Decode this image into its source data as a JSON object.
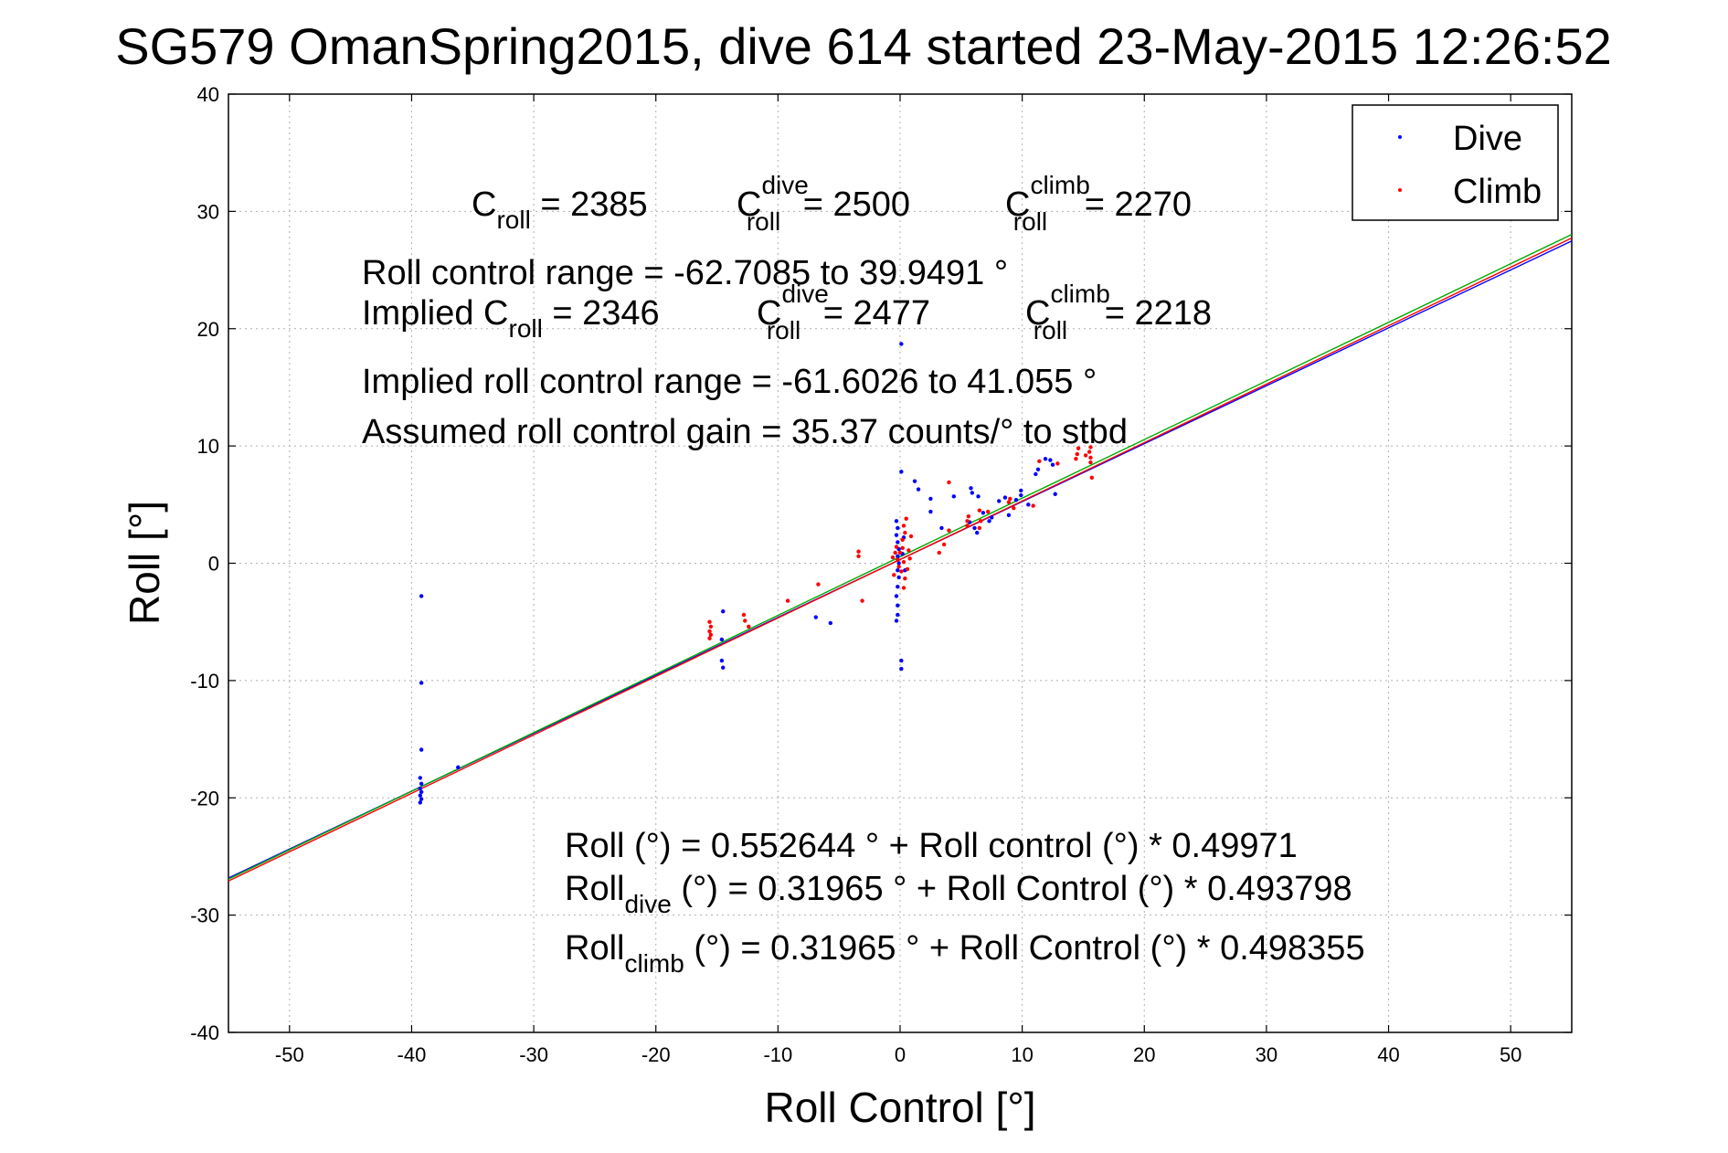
{
  "chart_data": {
    "type": "scatter",
    "title": "SG579 OmanSpring2015, dive 614 started 23-May-2015 12:26:52",
    "xlabel": "Roll Control [°]",
    "ylabel": "Roll [°]",
    "xlim": [
      -55,
      55
    ],
    "ylim": [
      -40,
      40
    ],
    "xticks": [
      -50,
      -40,
      -30,
      -20,
      -10,
      0,
      10,
      20,
      30,
      40,
      50
    ],
    "yticks": [
      -40,
      -30,
      -20,
      -10,
      0,
      10,
      20,
      30,
      40
    ],
    "grid": true,
    "legend": {
      "position": "top-right",
      "entries": [
        {
          "label": "Dive",
          "color": "#0000ff"
        },
        {
          "label": "Climb",
          "color": "#ff0000"
        }
      ]
    },
    "fit_lines": [
      {
        "color": "#0000ff",
        "intercept": 0.31965,
        "slope": 0.493798
      },
      {
        "color": "#ff0000",
        "intercept": 0.31965,
        "slope": 0.498355
      },
      {
        "color": "#00aa00",
        "intercept": 0.552644,
        "slope": 0.49971
      }
    ],
    "series": [
      {
        "name": "Dive",
        "color": "#0000ff",
        "points": [
          [
            -39.2,
            -2.8
          ],
          [
            -39.2,
            -10.2
          ],
          [
            -39.2,
            -15.9
          ],
          [
            -39.3,
            -18.3
          ],
          [
            -39.2,
            -18.8
          ],
          [
            -39.3,
            -19.2
          ],
          [
            -39.2,
            -19.5
          ],
          [
            -39.3,
            -19.8
          ],
          [
            -39.2,
            -20.1
          ],
          [
            -39.3,
            -20.4
          ],
          [
            -36.2,
            -17.4
          ],
          [
            -14.5,
            -4.1
          ],
          [
            -14.6,
            -6.5
          ],
          [
            -14.6,
            -8.3
          ],
          [
            -14.5,
            -8.9
          ],
          [
            -6.9,
            -4.6
          ],
          [
            -5.7,
            -5.1
          ],
          [
            -0.3,
            3.6
          ],
          [
            -0.2,
            3.0
          ],
          [
            -0.3,
            2.4
          ],
          [
            -0.2,
            1.8
          ],
          [
            -0.1,
            1.2
          ],
          [
            -0.2,
            0.6
          ],
          [
            -0.1,
            0.0
          ],
          [
            -0.2,
            -0.6
          ],
          [
            -0.1,
            -1.2
          ],
          [
            -0.2,
            -2.0
          ],
          [
            -0.3,
            -2.8
          ],
          [
            -0.2,
            -3.6
          ],
          [
            -0.2,
            -4.4
          ],
          [
            -0.3,
            -4.9
          ],
          [
            0.1,
            7.8
          ],
          [
            0.1,
            18.7
          ],
          [
            0.1,
            -8.3
          ],
          [
            0.1,
            -9.0
          ],
          [
            0.3,
            2.2
          ],
          [
            0.2,
            0.8
          ],
          [
            0.4,
            -0.6
          ],
          [
            1.2,
            7.0
          ],
          [
            1.5,
            6.3
          ],
          [
            2.5,
            5.5
          ],
          [
            2.5,
            4.4
          ],
          [
            3.4,
            3.0
          ],
          [
            4.4,
            5.7
          ],
          [
            5.8,
            6.4
          ],
          [
            5.9,
            6.0
          ],
          [
            6.4,
            5.7
          ],
          [
            5.7,
            3.5
          ],
          [
            6.1,
            3.0
          ],
          [
            6.3,
            2.6
          ],
          [
            6.8,
            4.3
          ],
          [
            7.3,
            3.6
          ],
          [
            7.5,
            3.9
          ],
          [
            8.1,
            5.3
          ],
          [
            8.6,
            5.6
          ],
          [
            8.9,
            4.1
          ],
          [
            9.5,
            5.4
          ],
          [
            9.9,
            6.2
          ],
          [
            9.9,
            5.8
          ],
          [
            10.5,
            5.0
          ],
          [
            11.1,
            7.6
          ],
          [
            11.3,
            8.0
          ],
          [
            12.3,
            8.8
          ],
          [
            12.5,
            8.4
          ],
          [
            12.7,
            5.9
          ],
          [
            11.9,
            8.9
          ]
        ]
      },
      {
        "name": "Climb",
        "color": "#ff0000",
        "points": [
          [
            -15.6,
            -5.0
          ],
          [
            -15.5,
            -5.4
          ],
          [
            -15.6,
            -5.8
          ],
          [
            -15.5,
            -6.1
          ],
          [
            -15.6,
            -6.4
          ],
          [
            -12.8,
            -4.4
          ],
          [
            -12.7,
            -4.9
          ],
          [
            -12.4,
            -5.4
          ],
          [
            -9.2,
            -3.2
          ],
          [
            -6.7,
            -1.8
          ],
          [
            -3.4,
            0.6
          ],
          [
            -3.4,
            1.0
          ],
          [
            -3.1,
            -3.2
          ],
          [
            -0.4,
            0.9
          ],
          [
            -0.3,
            1.4
          ],
          [
            -0.2,
            0.3
          ],
          [
            -0.1,
            -0.3
          ],
          [
            0.0,
            0.9
          ],
          [
            0.1,
            -0.7
          ],
          [
            0.2,
            2.0
          ],
          [
            0.2,
            1.3
          ],
          [
            0.3,
            0.1
          ],
          [
            0.3,
            3.2
          ],
          [
            0.4,
            -1.3
          ],
          [
            0.4,
            2.6
          ],
          [
            0.3,
            -2.1
          ],
          [
            0.5,
            3.8
          ],
          [
            0.6,
            -0.5
          ],
          [
            0.7,
            1.1
          ],
          [
            0.8,
            0.4
          ],
          [
            0.9,
            2.3
          ],
          [
            -0.5,
            -1.0
          ],
          [
            -0.6,
            0.5
          ],
          [
            3.2,
            0.9
          ],
          [
            3.6,
            1.6
          ],
          [
            4.0,
            2.8
          ],
          [
            4.0,
            6.9
          ],
          [
            5.5,
            3.6
          ],
          [
            5.5,
            3.2
          ],
          [
            5.6,
            4.0
          ],
          [
            6.5,
            4.5
          ],
          [
            6.6,
            3.6
          ],
          [
            6.5,
            3.0
          ],
          [
            7.2,
            4.4
          ],
          [
            8.9,
            5.2
          ],
          [
            9.0,
            5.5
          ],
          [
            9.3,
            4.7
          ],
          [
            10.9,
            4.9
          ],
          [
            11.4,
            8.7
          ],
          [
            12.9,
            8.5
          ],
          [
            14.5,
            9.3
          ],
          [
            14.6,
            9.8
          ],
          [
            14.4,
            8.9
          ],
          [
            15.2,
            9.2
          ],
          [
            15.5,
            9.5
          ],
          [
            15.6,
            9.0
          ],
          [
            15.6,
            8.6
          ],
          [
            15.6,
            9.9
          ],
          [
            15.7,
            7.3
          ]
        ]
      }
    ],
    "annotations": {
      "c_roll": {
        "base": "C",
        "sub": "roll",
        "value": " = 2385"
      },
      "c_roll_dive": {
        "base": "C",
        "sup": "dive",
        "sub": "roll",
        "value": " = 2500"
      },
      "c_roll_climb": {
        "base": "C",
        "sup": "climb",
        "sub": "roll",
        "value": " = 2270"
      },
      "roll_control_range": "Roll control range = -62.7085 to 39.9491 °",
      "implied_c_roll": {
        "prefix": "Implied C",
        "sub": "roll",
        "value": " = 2346"
      },
      "implied_c_roll_dive": {
        "base": "C",
        "sup": "dive",
        "sub": "roll",
        "value": " = 2477"
      },
      "implied_c_roll_climb": {
        "base": "C",
        "sup": "climb",
        "sub": "roll",
        "value": " = 2218"
      },
      "implied_range": "Implied roll control range = -61.6026 to 41.055 °",
      "assumed_gain": "Assumed roll control gain = 35.37 counts/° to stbd",
      "fit_all": "Roll (°) = 0.552644 ° + Roll control (°) * 0.49971",
      "fit_dive": {
        "base": "Roll",
        "sub": "dive",
        "text": " (°) = 0.31965 ° + Roll Control (°) * 0.493798"
      },
      "fit_climb": {
        "base": "Roll",
        "sub": "climb",
        "text": " (°) = 0.31965 ° + Roll Control (°) * 0.498355"
      }
    }
  }
}
